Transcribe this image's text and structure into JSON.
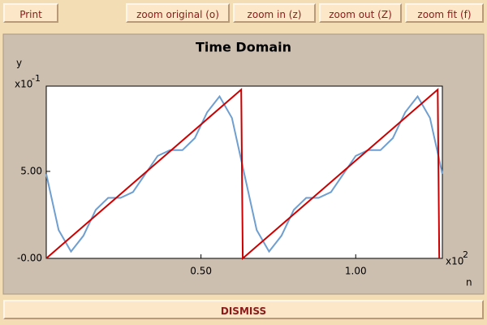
{
  "toolbar": {
    "buttons": [
      "Print",
      "zoom original (o)",
      "zoom in (z)",
      "zoom out (Z)",
      "zoom fit (f)"
    ]
  },
  "chart_data": {
    "type": "line",
    "title": "Time Domain",
    "y_label": "y",
    "x_label": "n",
    "y_multiplier": {
      "base": "x10",
      "exponent": "-1"
    },
    "x_multiplier": {
      "base": "x10",
      "exponent": "2"
    },
    "xlim": [
      0,
      1.28
    ],
    "ylim": [
      0,
      9.9
    ],
    "xticks": [
      {
        "value": 0.5,
        "label": "0.50"
      },
      {
        "value": 1,
        "label": "1.00"
      }
    ],
    "yticks": [
      {
        "value": 0,
        "label": "-0.00"
      },
      {
        "value": 5,
        "label": "5.00"
      }
    ],
    "series": [
      {
        "color": "#6f9fd0",
        "x": [
          0,
          0.04,
          0.08,
          0.12,
          0.16,
          0.2,
          0.24,
          0.28,
          0.32,
          0.36,
          0.4,
          0.44,
          0.48,
          0.52,
          0.56,
          0.6,
          0.64,
          0.68,
          0.72,
          0.76,
          0.8,
          0.84,
          0.88,
          0.92,
          0.96,
          1.0,
          1.04,
          1.08,
          1.12,
          1.16,
          1.2,
          1.24,
          1.28
        ],
        "values": [
          4.85,
          1.63,
          0.39,
          1.3,
          2.79,
          3.48,
          3.48,
          3.81,
          4.85,
          5.89,
          6.22,
          6.22,
          6.91,
          8.4,
          9.31,
          8.07,
          4.85,
          1.63,
          0.39,
          1.3,
          2.79,
          3.48,
          3.48,
          3.81,
          4.85,
          5.89,
          6.22,
          6.22,
          6.91,
          8.4,
          9.31,
          8.07,
          4.85
        ]
      },
      {
        "color": "#cc0000",
        "x": [
          0,
          0.63,
          0.635,
          1.265,
          1.27
        ],
        "values": [
          0,
          9.7,
          0,
          9.7,
          0
        ]
      }
    ]
  },
  "footer": {
    "button": "DISMISS"
  }
}
